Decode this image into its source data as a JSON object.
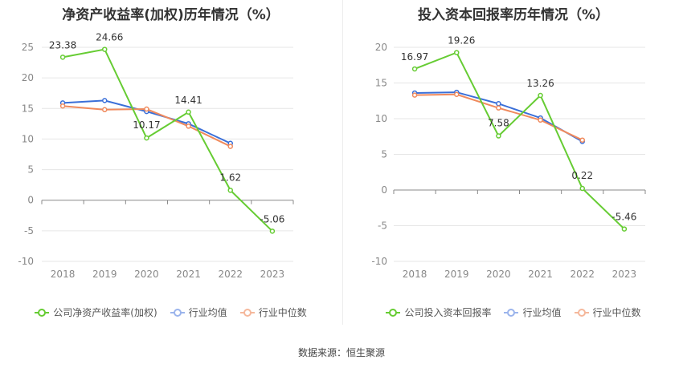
{
  "source": "数据来源：恒生聚源",
  "chart_data": [
    {
      "type": "line",
      "title": "净资产收益率(加权)历年情况（%）",
      "categories": [
        "2018",
        "2019",
        "2020",
        "2021",
        "2022",
        "2023"
      ],
      "ylim": [
        -10,
        25
      ],
      "yticks": [
        -10,
        -5,
        0,
        5,
        10,
        15,
        20,
        25
      ],
      "series": [
        {
          "name": "公司净资产收益率(加权)",
          "color": "#66cc33",
          "values": [
            23.38,
            24.66,
            10.17,
            14.41,
            1.62,
            -5.06
          ],
          "labels": [
            "23.38",
            "24.66",
            "10.17",
            "14.41",
            "1.62",
            "-5.06"
          ]
        },
        {
          "name": "行业均值",
          "color": "#3a6fd8",
          "values": [
            15.9,
            16.3,
            14.5,
            12.5,
            9.3,
            null
          ],
          "labels": []
        },
        {
          "name": "行业中位数",
          "color": "#f08a5d",
          "values": [
            15.4,
            14.8,
            14.9,
            12.1,
            8.8,
            null
          ],
          "labels": []
        }
      ]
    },
    {
      "type": "line",
      "title": "投入资本回报率历年情况（%）",
      "categories": [
        "2018",
        "2019",
        "2020",
        "2021",
        "2022",
        "2023"
      ],
      "ylim": [
        -10,
        20
      ],
      "yticks": [
        -10,
        -5,
        0,
        5,
        10,
        15,
        20
      ],
      "series": [
        {
          "name": "公司投入资本回报率",
          "color": "#66cc33",
          "values": [
            16.97,
            19.26,
            7.58,
            13.26,
            0.22,
            -5.46
          ],
          "labels": [
            "16.97",
            "19.26",
            "7.58",
            "13.26",
            "0.22",
            "-5.46"
          ]
        },
        {
          "name": "行业均值",
          "color": "#3a6fd8",
          "values": [
            13.6,
            13.7,
            12.1,
            10.1,
            6.8,
            null
          ],
          "labels": []
        },
        {
          "name": "行业中位数",
          "color": "#f08a5d",
          "values": [
            13.3,
            13.4,
            11.5,
            9.8,
            7.0,
            null
          ],
          "labels": []
        }
      ]
    }
  ]
}
